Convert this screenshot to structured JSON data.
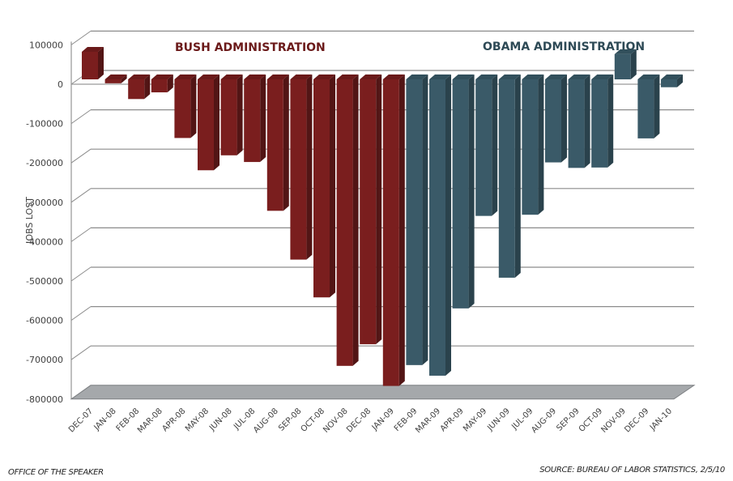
{
  "chart_data": {
    "type": "bar",
    "style": "3d-column",
    "ylabel": "JOBS LOST",
    "xlabel": "",
    "ylim": [
      -800000,
      100000
    ],
    "yticks": [
      100000,
      0,
      -100000,
      -200000,
      -300000,
      -400000,
      -500000,
      -600000,
      -700000,
      -800000
    ],
    "ytick_labels": [
      "100000",
      "0",
      "-100000",
      "-200000",
      "-300000",
      "-400000",
      "-500000",
      "-600000",
      "-700000",
      "-800000"
    ],
    "grid": true,
    "categories": [
      "DEC-07",
      "JAN-08",
      "FEB-08",
      "MAR-08",
      "APR-08",
      "MAY-08",
      "JUN-08",
      "JUL-08",
      "AUG-08",
      "SEP-08",
      "OCT-08",
      "NOV-08",
      "DEC-08",
      "JAN-09",
      "FEB-09",
      "MAR-09",
      "APR-09",
      "MAY-09",
      "JUN-09",
      "JUL-09",
      "AUG-09",
      "SEP-09",
      "OCT-09",
      "NOV-09",
      "DEC-09",
      "JAN-10"
    ],
    "series": [
      {
        "name": "BUSH ADMINISTRATION",
        "color": "#7a1e1e",
        "categories": [
          "DEC-07",
          "JAN-08",
          "FEB-08",
          "MAR-08",
          "APR-08",
          "MAY-08",
          "JUN-08",
          "JUL-08",
          "AUG-08",
          "SEP-08",
          "OCT-08",
          "NOV-08",
          "DEC-08",
          "JAN-09"
        ],
        "values": [
          70000,
          -10000,
          -50000,
          -33000,
          -149000,
          -231000,
          -193000,
          -210000,
          -334000,
          -458000,
          -554000,
          -728000,
          -673000,
          -779000
        ]
      },
      {
        "name": "OBAMA ADMINISTRATION",
        "color": "#3a5a68",
        "categories": [
          "FEB-09",
          "MAR-09",
          "APR-09",
          "MAY-09",
          "JUN-09",
          "JUL-09",
          "AUG-09",
          "SEP-09",
          "OCT-09",
          "NOV-09",
          "DEC-09",
          "JAN-10"
        ],
        "values": [
          -726000,
          -753000,
          -582000,
          -347000,
          -504000,
          -344000,
          -211000,
          -225000,
          -224000,
          64000,
          -150000,
          -20000
        ]
      }
    ],
    "annotations": [
      {
        "text": "BUSH ADMINISTRATION",
        "color": "#6b1a1a",
        "placement": "top-left"
      },
      {
        "text": "OBAMA ADMINISTRATION",
        "color": "#2e4a56",
        "placement": "top-right"
      }
    ]
  },
  "footer": {
    "left": "OFFICE OF THE SPEAKER",
    "right": "SOURCE: BUREAU OF LABOR STATISTICS, 2/5/10"
  },
  "colors": {
    "bush_front": "#7a1e1e",
    "bush_side": "#521515",
    "bush_top": "#6a1a1a",
    "obama_front": "#3a5a68",
    "obama_side": "#2a424c",
    "obama_top": "#32505c",
    "floor": "#a5a8ab",
    "grid": "#8c8c8c"
  }
}
